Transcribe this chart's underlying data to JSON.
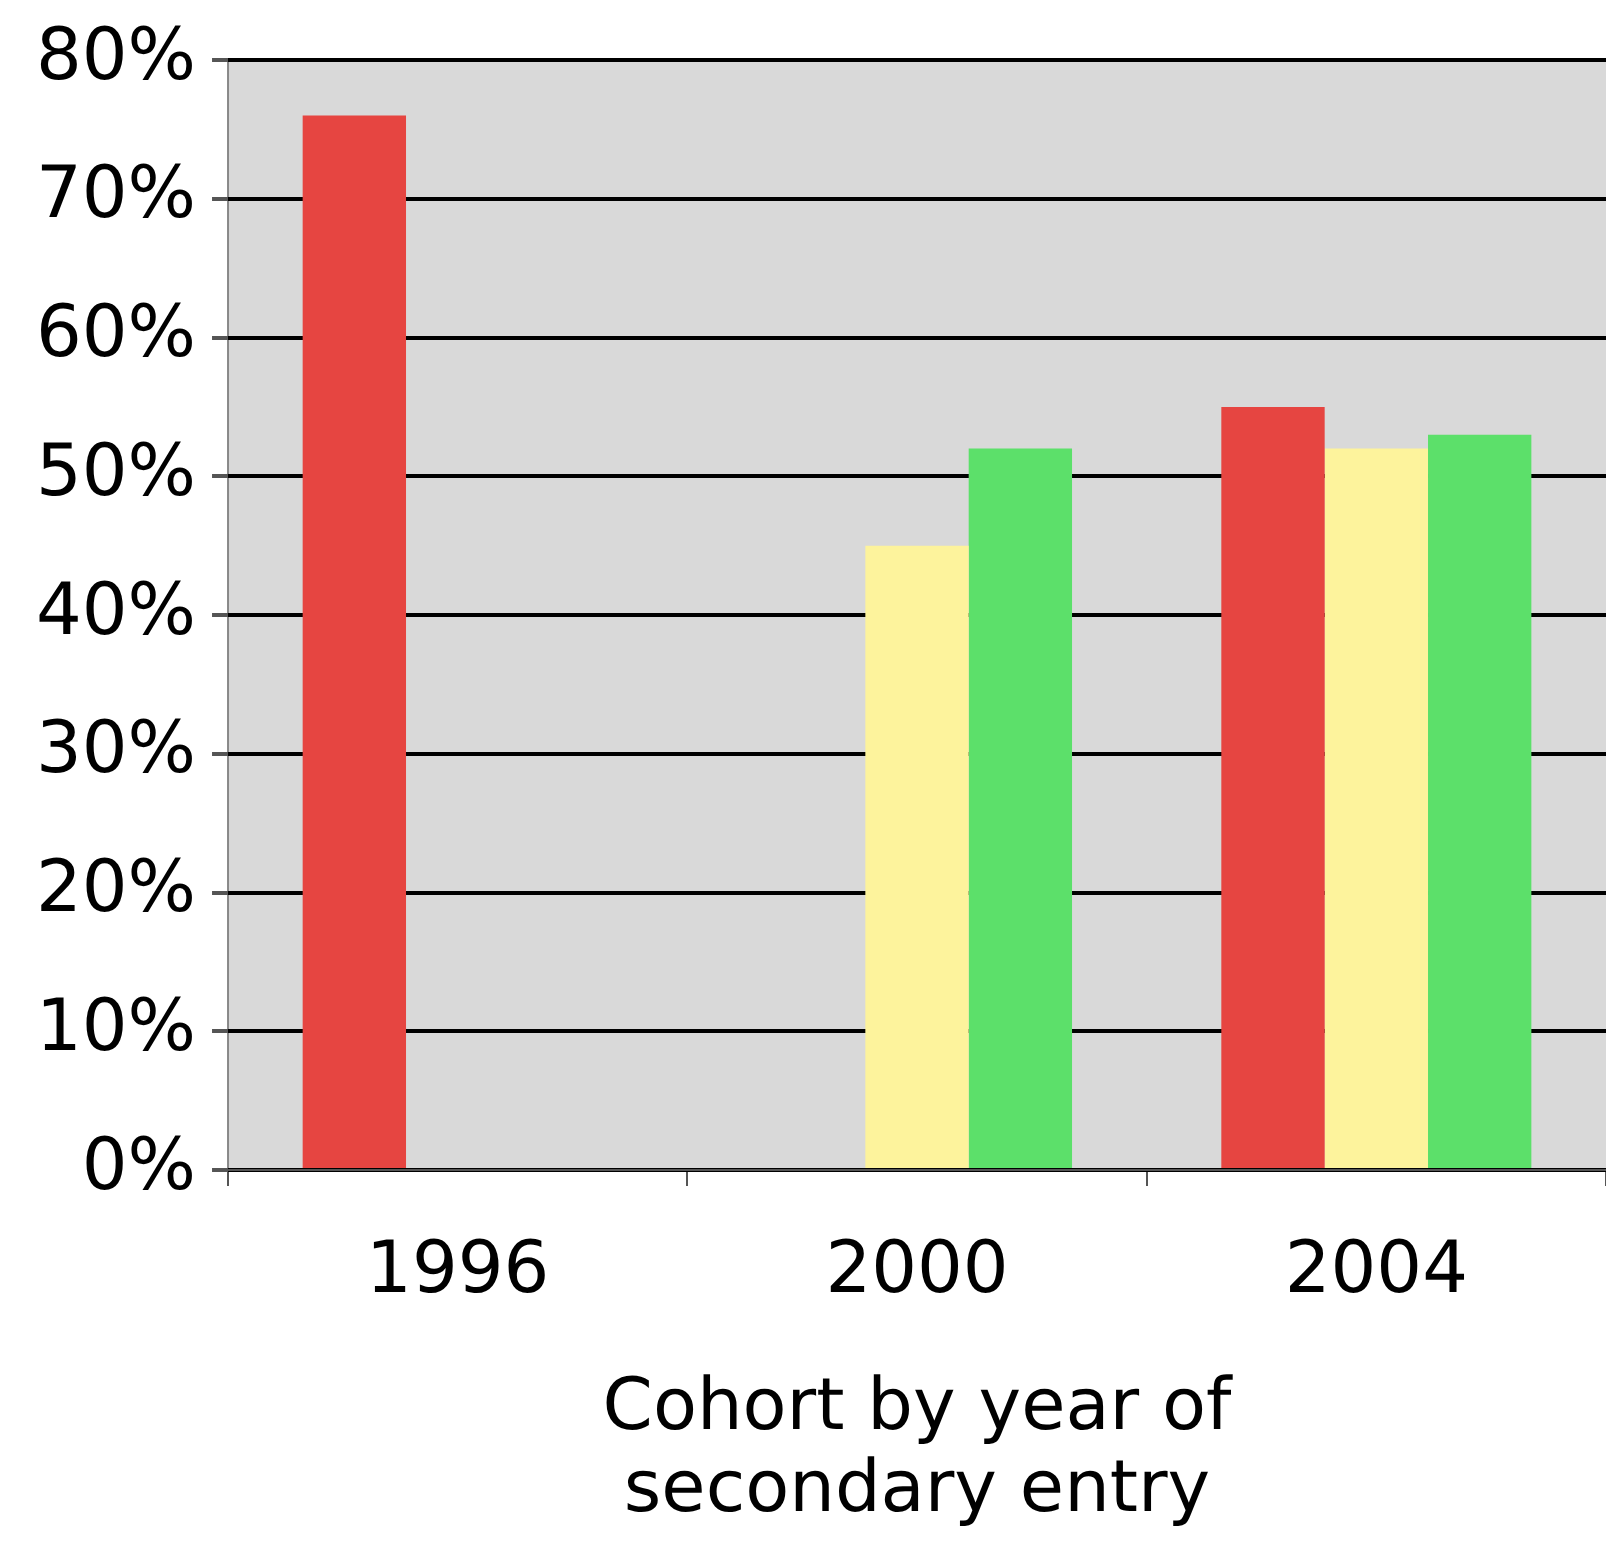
{
  "chart_data": {
    "type": "bar",
    "xlabel": "Cohort by year of secondary entry",
    "categories": [
      "1996",
      "2000",
      "2004"
    ],
    "series": [
      {
        "color": "#e64541",
        "values": [
          76,
          null,
          55
        ]
      },
      {
        "color": "#fdf39c",
        "values": [
          null,
          45,
          52
        ]
      },
      {
        "color": "#5ce06a",
        "values": [
          null,
          52,
          53
        ]
      }
    ],
    "ylim": [
      0,
      80
    ],
    "yticks": [
      {
        "value": 0,
        "label": "0%"
      },
      {
        "value": 10,
        "label": "10%"
      },
      {
        "value": 20,
        "label": "20%"
      },
      {
        "value": 30,
        "label": "30%"
      },
      {
        "value": 40,
        "label": "40%"
      },
      {
        "value": 50,
        "label": "50%"
      },
      {
        "value": 60,
        "label": "60%"
      },
      {
        "value": 70,
        "label": "70%"
      },
      {
        "value": 80,
        "label": "80%"
      }
    ],
    "grid": "y",
    "legend": false
  }
}
